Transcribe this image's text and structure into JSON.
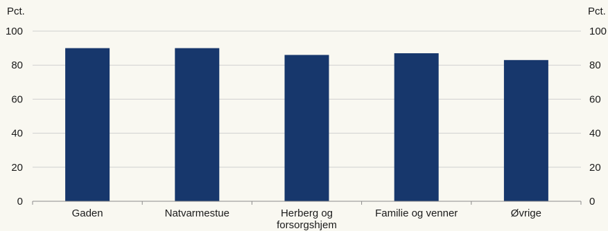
{
  "chart_data": {
    "type": "bar",
    "categories": [
      "Gaden",
      "Natvarmestue",
      "Herberg og forsorgshjem",
      "Familie og venner",
      "Øvrige"
    ],
    "category_lines": [
      [
        "Gaden"
      ],
      [
        "Natvarmestue"
      ],
      [
        "Herberg og",
        "forsorgshjem"
      ],
      [
        "Familie og venner"
      ],
      [
        "Øvrige"
      ]
    ],
    "values": [
      90,
      90,
      86,
      87,
      83
    ],
    "title": "",
    "xlabel": "",
    "ylabel": "",
    "y_unit_left": "Pct.",
    "y_unit_right": "Pct.",
    "ylim": [
      0,
      100
    ],
    "yticks": [
      0,
      20,
      40,
      60,
      80,
      100
    ],
    "ytick_labels": [
      "0",
      "20",
      "40",
      "60",
      "80",
      "100"
    ],
    "grid": true,
    "legend": "none",
    "colors": {
      "bar": "#17376c",
      "grid": "#cfcfcf",
      "axis": "#8a8a8a",
      "background": "#f9f8f1"
    }
  }
}
